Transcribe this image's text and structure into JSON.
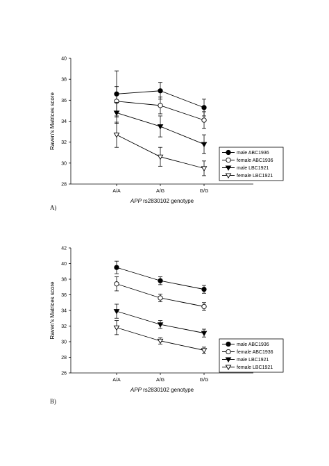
{
  "chart_data": [
    {
      "panel_label": "A)",
      "type": "line",
      "xlabel_italic": "APP",
      "xlabel_rest": " rs2830102 genotype",
      "ylabel": "Raven's Matrices score",
      "categories": [
        "A/A",
        "A/G",
        "G/G"
      ],
      "ylim": [
        28,
        40
      ],
      "yticks": [
        28,
        30,
        32,
        34,
        36,
        38,
        40
      ],
      "grid": false,
      "legend_position": "bottom-right",
      "series": [
        {
          "name": "male ABC1936",
          "marker": "filled-circle",
          "values": [
            36.6,
            36.9,
            35.3
          ],
          "err": [
            2.2,
            0.8,
            0.8
          ]
        },
        {
          "name": "female ABC1936",
          "marker": "open-circle",
          "values": [
            35.9,
            35.5,
            34.1
          ],
          "err": [
            1.4,
            0.8,
            0.8
          ]
        },
        {
          "name": "male LBC1921",
          "marker": "filled-triangle-down",
          "values": [
            34.8,
            33.5,
            31.8
          ],
          "err": [
            1.0,
            1.0,
            0.9
          ]
        },
        {
          "name": "female LBC1921",
          "marker": "open-triangle-down",
          "values": [
            32.7,
            30.6,
            29.5
          ],
          "err": [
            1.2,
            0.9,
            0.7
          ]
        }
      ]
    },
    {
      "panel_label": "B)",
      "type": "line",
      "xlabel_italic": "APP",
      "xlabel_rest": " rs2830102 genotype",
      "ylabel": "Raven's Matrices score",
      "categories": [
        "A/A",
        "A/G",
        "G/G"
      ],
      "ylim": [
        26,
        42
      ],
      "yticks": [
        26,
        28,
        30,
        32,
        34,
        36,
        38,
        40,
        42
      ],
      "grid": false,
      "legend_position": "bottom-right",
      "series": [
        {
          "name": "male ABC1936",
          "marker": "filled-circle",
          "values": [
            39.5,
            37.8,
            36.7
          ],
          "err": [
            0.8,
            0.5,
            0.5
          ]
        },
        {
          "name": "female ABC1936",
          "marker": "open-circle",
          "values": [
            37.4,
            35.6,
            34.5
          ],
          "err": [
            0.9,
            0.5,
            0.5
          ]
        },
        {
          "name": "male LBC1921",
          "marker": "filled-triangle-down",
          "values": [
            33.9,
            32.2,
            31.1
          ],
          "err": [
            0.9,
            0.5,
            0.5
          ]
        },
        {
          "name": "female LBC1921",
          "marker": "open-triangle-down",
          "values": [
            31.8,
            30.1,
            28.9
          ],
          "err": [
            0.9,
            0.4,
            0.4
          ]
        }
      ]
    }
  ]
}
